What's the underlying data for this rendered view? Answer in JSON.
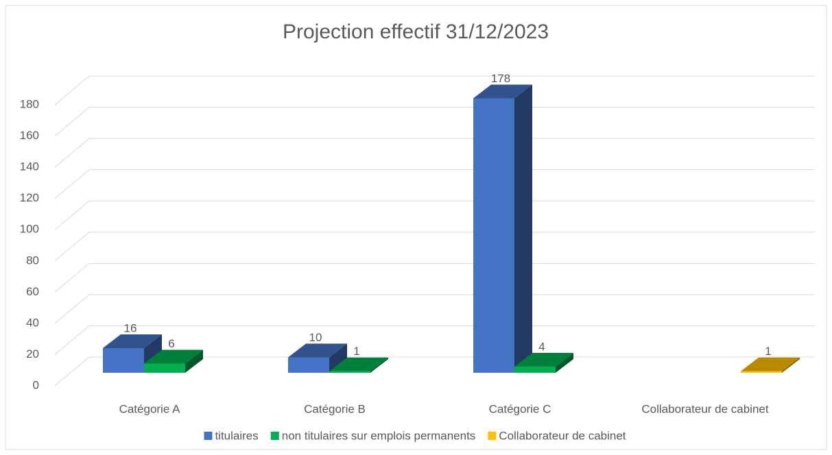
{
  "chart_data": {
    "type": "bar3d",
    "title": "Projection effectif 31/12/2023",
    "categories": [
      "Catégorie A",
      "Catégorie B",
      "Catégorie C",
      "Collaborateur de cabinet"
    ],
    "series": [
      {
        "name": "titulaires",
        "color": "#4472c4",
        "values": [
          16,
          10,
          178,
          null
        ]
      },
      {
        "name": "non titulaires sur emplois permanents",
        "color": "#00b050",
        "values": [
          6,
          1,
          4,
          null
        ]
      },
      {
        "name": "Collaborateur de cabinet",
        "color": "#ffc000",
        "values": [
          null,
          null,
          null,
          1
        ]
      }
    ],
    "ylim": [
      0,
      180
    ],
    "yticks": [
      0,
      20,
      40,
      60,
      80,
      100,
      120,
      140,
      160,
      180
    ],
    "grid": true,
    "legend": "bottom"
  }
}
